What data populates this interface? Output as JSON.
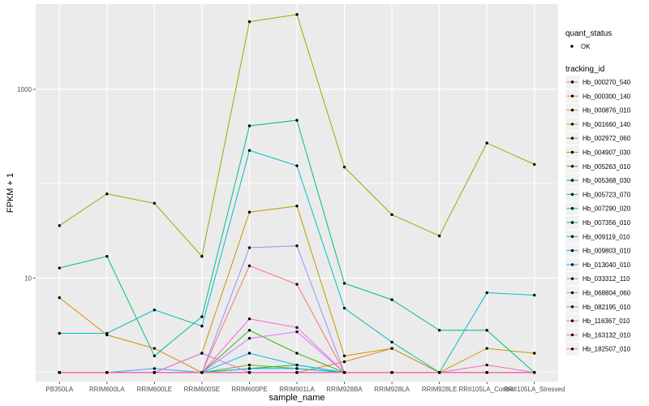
{
  "chart_data": {
    "type": "line",
    "title": "",
    "xlabel": "sample_name",
    "ylabel": "FPKM + 1",
    "yscale": "log10",
    "ylim": [
      0.8,
      8000
    ],
    "grid": true,
    "x_ticks": [
      "PB350LA",
      "RRIM600LA",
      "RRIM600LE",
      "RRIM600SE",
      "RRIM600PE",
      "RRIM901LA",
      "RRIM928BA",
      "RRIM928LA",
      "RRIM928LE",
      "RRII105LA_Control",
      "RRII105LA_Stressed"
    ],
    "y_ticks": [
      {
        "value": 10,
        "label": "10"
      },
      {
        "value": 1000,
        "label": "1000"
      }
    ],
    "legend_shape": {
      "title": "quant_status",
      "entries": [
        "OK"
      ]
    },
    "legend_color": {
      "title": "tracking_id"
    },
    "series": [
      {
        "name": "Hb_000270_540",
        "color": "#F8766D",
        "values": [
          1,
          1,
          1,
          1,
          13.5,
          8.6,
          1,
          1,
          1,
          1,
          1
        ]
      },
      {
        "name": "Hb_000300_140",
        "color": "#EA8331",
        "values": [
          1,
          1,
          1,
          1,
          1,
          1,
          1.3,
          1.8,
          1,
          1,
          1
        ]
      },
      {
        "name": "Hb_000876_010",
        "color": "#D89000",
        "values": [
          6.2,
          2.5,
          1.8,
          1,
          1,
          1,
          1,
          1,
          1,
          1,
          1
        ]
      },
      {
        "name": "Hb_001660_140",
        "color": "#C09B00",
        "values": [
          1,
          1,
          1,
          1.6,
          50,
          58,
          1.5,
          1.8,
          1,
          1.8,
          1.6
        ]
      },
      {
        "name": "Hb_002972_060",
        "color": "#A3A500",
        "values": [
          36,
          78,
          62,
          17,
          5200,
          6200,
          150,
          47,
          28,
          270,
          160
        ]
      },
      {
        "name": "Hb_004907_030",
        "color": "#7CAE00",
        "values": [
          1,
          1,
          1,
          1,
          1.2,
          1.1,
          1,
          1,
          1,
          1,
          1
        ]
      },
      {
        "name": "Hb_005263_010",
        "color": "#39B600",
        "values": [
          1,
          1,
          1,
          1,
          2.8,
          1.6,
          1,
          1,
          1,
          1,
          1
        ]
      },
      {
        "name": "Hb_005368_030",
        "color": "#00BB4E",
        "values": [
          1,
          1,
          1,
          1,
          1.1,
          1.2,
          1,
          1,
          1,
          1,
          1
        ]
      },
      {
        "name": "Hb_005723_070",
        "color": "#00BF7D",
        "values": [
          12.8,
          17,
          1.5,
          3.9,
          410,
          470,
          8.8,
          5.9,
          2.8,
          2.8,
          1
        ]
      },
      {
        "name": "Hb_007290_020",
        "color": "#00C1A3",
        "values": [
          1,
          1,
          1,
          1,
          1,
          1,
          1,
          1,
          1,
          1,
          1
        ]
      },
      {
        "name": "Hb_007356_010",
        "color": "#00BFC4",
        "values": [
          2.6,
          2.6,
          4.6,
          3.1,
          225,
          155,
          4.8,
          2.1,
          1,
          7,
          6.6
        ]
      },
      {
        "name": "Hb_009119_010",
        "color": "#00BAE0",
        "values": [
          1,
          1,
          1,
          1,
          1.6,
          1.2,
          1,
          1,
          1,
          1,
          1
        ]
      },
      {
        "name": "Hb_009803_010",
        "color": "#00B0F6",
        "values": [
          1,
          1,
          1,
          1,
          1.1,
          1.1,
          1,
          1,
          1,
          1,
          1
        ]
      },
      {
        "name": "Hb_013040_010",
        "color": "#35A2FF",
        "values": [
          1,
          1,
          1.1,
          1,
          1,
          1,
          1,
          1,
          1,
          1,
          1
        ]
      },
      {
        "name": "Hb_033312_110",
        "color": "#9590FF",
        "values": [
          1,
          1,
          1,
          1,
          21,
          22,
          1,
          1,
          1,
          1,
          1
        ]
      },
      {
        "name": "Hb_068804_060",
        "color": "#C77CFF",
        "values": [
          1,
          1,
          1,
          1,
          2.3,
          2.7,
          1,
          1,
          1,
          1,
          1
        ]
      },
      {
        "name": "Hb_082195_010",
        "color": "#E76BF3",
        "values": [
          1,
          1,
          1,
          1.6,
          1,
          1,
          1,
          1,
          1,
          1,
          1
        ]
      },
      {
        "name": "Hb_116367_010",
        "color": "#FA62DB",
        "values": [
          1,
          1,
          1,
          1,
          3.7,
          3,
          1,
          1,
          1,
          1,
          1
        ]
      },
      {
        "name": "Hb_163132_010",
        "color": "#FF62BC",
        "values": [
          1,
          1,
          1,
          1,
          1,
          1,
          1,
          1,
          1,
          1.2,
          1
        ]
      },
      {
        "name": "Hb_182507_010",
        "color": "#FF6C91",
        "values": [
          1,
          1,
          1,
          1,
          1,
          1,
          1,
          1,
          1,
          1,
          1
        ]
      }
    ]
  }
}
